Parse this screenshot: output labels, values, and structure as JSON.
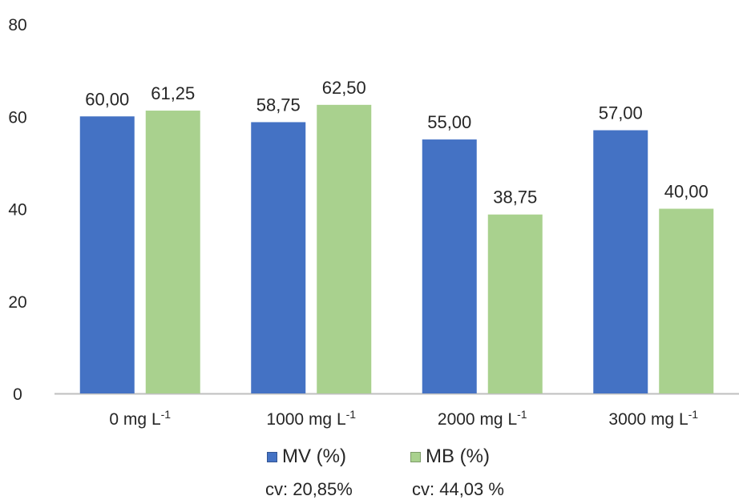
{
  "chart_data": {
    "type": "bar",
    "categories": [
      {
        "base": "0 mg L",
        "sup": "-1"
      },
      {
        "base": "1000 mg L",
        "sup": "-1"
      },
      {
        "base": "2000 mg L",
        "sup": "-1"
      },
      {
        "base": "3000 mg L",
        "sup": "-1"
      }
    ],
    "series": [
      {
        "name": "MV (%)",
        "color": "#4472C4",
        "values": [
          60.0,
          58.75,
          55.0,
          57.0
        ],
        "labels": [
          "60,00",
          "58,75",
          "55,00",
          "57,00"
        ]
      },
      {
        "name": "MB (%)",
        "color": "#A9D18E",
        "values": [
          61.25,
          62.5,
          38.75,
          40.0
        ],
        "labels": [
          "61,25",
          "62,50",
          "38,75",
          "40,00"
        ]
      }
    ],
    "ylim": [
      0,
      80
    ],
    "yticks": [
      0,
      20,
      40,
      60,
      80
    ],
    "grid": false,
    "legend_position": "bottom",
    "cv": [
      "cv: 20,85%",
      "cv: 44,03 %"
    ]
  }
}
